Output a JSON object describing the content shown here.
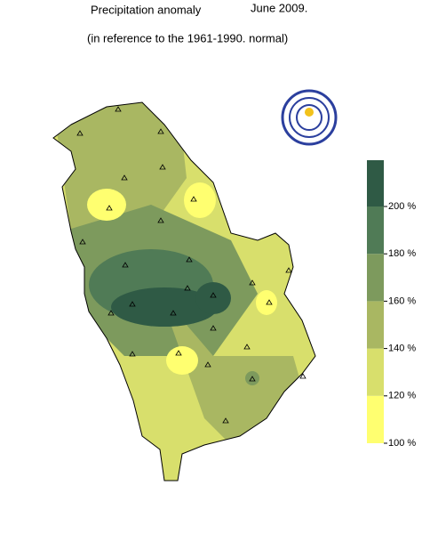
{
  "header": {
    "title": "Precipitation anomaly",
    "date": "June 2009.",
    "subtitle": "(in reference to the 1961-1990. normal)"
  },
  "legend": {
    "ticks": [
      {
        "value": 100,
        "label": "100 %"
      },
      {
        "value": 120,
        "label": "120 %"
      },
      {
        "value": 140,
        "label": "140 %"
      },
      {
        "value": 160,
        "label": "160 %"
      },
      {
        "value": 180,
        "label": "180 %"
      },
      {
        "value": 200,
        "label": "200 %"
      }
    ],
    "colors": [
      "#ffff70",
      "#d8df6c",
      "#a9b762",
      "#7d9a5d",
      "#507b56",
      "#2f5a45"
    ]
  }
}
